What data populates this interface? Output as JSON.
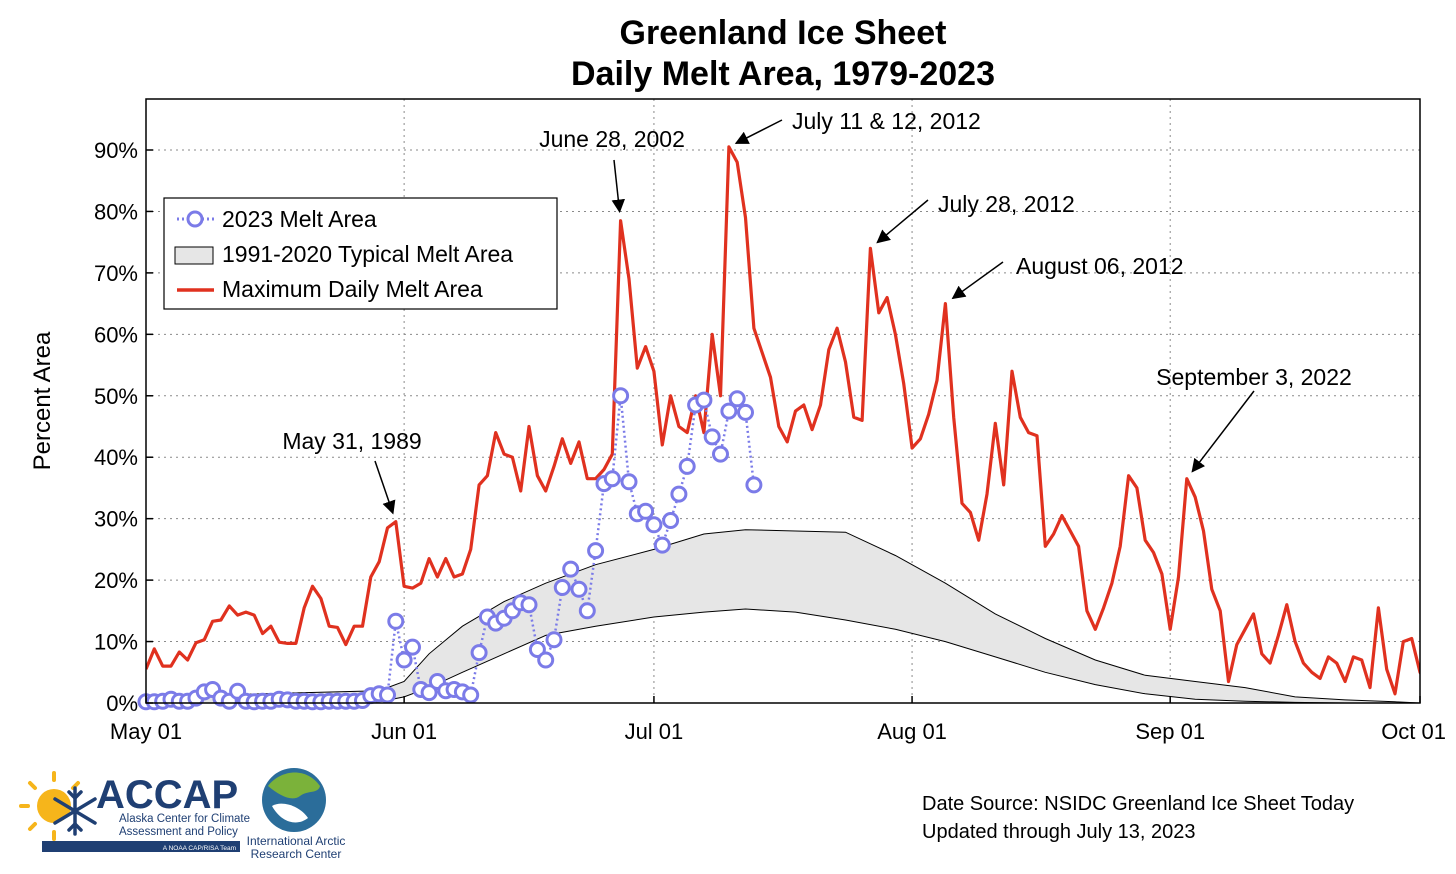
{
  "chart_data": {
    "type": "line",
    "title": "Greenland Ice Sheet",
    "subtitle": "Daily Melt Area, 1979-2023",
    "ylabel": "Percent Area",
    "xlabel": "",
    "ylim": [
      0,
      98.3
    ],
    "xlim": [
      0,
      153
    ],
    "yticks": [
      0,
      10,
      20,
      30,
      40,
      50,
      60,
      70,
      80,
      90
    ],
    "ytick_labels": [
      "0%",
      "10%",
      "20%",
      "30%",
      "40%",
      "50%",
      "60%",
      "70%",
      "80%",
      "90%"
    ],
    "xticks": [
      0,
      31,
      61,
      92,
      123,
      153
    ],
    "xtick_labels": [
      "May 01",
      "Jun 01",
      "Jul 01",
      "Aug 01",
      "Sep 01",
      "Oct 01"
    ],
    "grid": true,
    "legend_position": "upper-left",
    "legend": [
      {
        "label": "2023 Melt Area",
        "style": "dotted-circles",
        "color": "#7b7be8"
      },
      {
        "label": "1991-2020 Typical Melt Area",
        "style": "band",
        "color": "#e6e6e6"
      },
      {
        "label": "Maximum Daily Melt Area",
        "style": "line",
        "color": "#e0311f"
      }
    ],
    "series": [
      {
        "name": "Maximum Daily Melt Area",
        "color": "#e0311f",
        "values": [
          5.5,
          8.8,
          6.0,
          6.0,
          8.3,
          7.0,
          9.8,
          10.3,
          13.3,
          13.5,
          15.8,
          14.3,
          14.8,
          14.3,
          11.3,
          12.5,
          9.9,
          9.7,
          9.7,
          15.5,
          19.0,
          17.0,
          12.5,
          12.3,
          9.5,
          12.5,
          12.5,
          20.5,
          23.0,
          28.5,
          29.5,
          19.0,
          18.7,
          19.5,
          23.5,
          20.5,
          23.5,
          20.5,
          21.0,
          25.0,
          35.5,
          37.0,
          44.0,
          40.5,
          40.0,
          34.5,
          45.0,
          37.0,
          34.5,
          38.5,
          43.0,
          39.0,
          42.5,
          36.5,
          36.5,
          38.0,
          40.5,
          78.5,
          69.0,
          54.5,
          58.0,
          54.0,
          42.0,
          50.0,
          45.0,
          44.0,
          50.0,
          44.0,
          60.0,
          50.0,
          90.5,
          88.0,
          79.0,
          61.0,
          57.0,
          53.0,
          45.0,
          42.5,
          47.5,
          48.5,
          44.5,
          48.5,
          57.5,
          61.0,
          55.5,
          46.5,
          46.0,
          74.0,
          63.5,
          66.0,
          60.0,
          52.0,
          41.5,
          43.0,
          47.0,
          52.5,
          65.0,
          46.5,
          32.5,
          31.0,
          26.5,
          34.0,
          45.5,
          35.5,
          54.0,
          46.5,
          44.0,
          43.5,
          25.5,
          27.5,
          30.5,
          28.0,
          25.5,
          15.0,
          12.0,
          15.5,
          19.5,
          25.5,
          37.0,
          35.0,
          26.5,
          24.5,
          21.0,
          12.0,
          20.5,
          36.5,
          33.5,
          28.0,
          18.5,
          15.0,
          3.5,
          9.5,
          12.0,
          14.5,
          8.0,
          6.5,
          11.0,
          16.0,
          10.0,
          6.5,
          5.0,
          4.0,
          7.5,
          6.5,
          3.5,
          7.5,
          7.0,
          2.5,
          15.5,
          5.5,
          1.5,
          10.0,
          10.5,
          5.0,
          3.0
        ]
      },
      {
        "name": "2023 Melt Area",
        "color": "#7b7be8",
        "values": [
          0.2,
          0.2,
          0.3,
          0.6,
          0.3,
          0.3,
          0.8,
          1.8,
          2.2,
          0.8,
          0.3,
          1.9,
          0.3,
          0.2,
          0.3,
          0.3,
          0.6,
          0.5,
          0.3,
          0.3,
          0.2,
          0.2,
          0.3,
          0.3,
          0.3,
          0.3,
          0.4,
          1.2,
          1.5,
          1.3,
          13.3,
          7.0,
          9.1,
          2.2,
          1.7,
          3.5,
          2.0,
          2.2,
          1.8,
          1.3,
          8.2,
          14.0,
          13.0,
          13.8,
          15.0,
          16.3,
          16.0,
          8.7,
          7.0,
          10.3,
          18.8,
          21.8,
          18.5,
          15.0,
          24.8,
          35.7,
          36.5,
          50.0,
          36.0,
          30.8,
          31.2,
          29.0,
          25.7,
          29.7,
          34.0,
          38.5,
          48.5,
          49.3,
          43.3,
          40.5,
          47.5,
          49.5,
          47.3,
          35.5
        ]
      }
    ],
    "band": {
      "name": "1991-2020 Typical Melt Area",
      "x": [
        0,
        14,
        28,
        31,
        34,
        38,
        43,
        48,
        54,
        61,
        67,
        72,
        78,
        84,
        90,
        96,
        102,
        108,
        114,
        120,
        126,
        132,
        138,
        144,
        150,
        153
      ],
      "upper": [
        1.0,
        1.5,
        2.0,
        3.5,
        8.0,
        12.5,
        16.5,
        19.5,
        22.5,
        25.0,
        27.5,
        28.2,
        28.0,
        27.8,
        24.0,
        19.5,
        14.5,
        10.5,
        7.0,
        4.5,
        3.5,
        2.5,
        1.0,
        0.5,
        0.2,
        0.0
      ],
      "lower": [
        0.0,
        0.0,
        0.2,
        1.0,
        2.5,
        5.0,
        8.0,
        11.0,
        12.5,
        14.0,
        14.8,
        15.3,
        14.8,
        13.5,
        12.0,
        10.0,
        7.5,
        5.0,
        3.0,
        1.5,
        0.6,
        0.3,
        0.1,
        0.0,
        0.0,
        0.0
      ]
    },
    "annotations": [
      {
        "text": "May 31, 1989",
        "x": 30,
        "y": 29.5
      },
      {
        "text": "June 28, 2002",
        "x": 57,
        "y": 78.5
      },
      {
        "text": "July 11 & 12, 2012",
        "x": 70,
        "y": 90.5
      },
      {
        "text": "July 28, 2012",
        "x": 87,
        "y": 74.0
      },
      {
        "text": "August 06, 2012",
        "x": 96,
        "y": 65.0
      },
      {
        "text": "September 3, 2022",
        "x": 125,
        "y": 36.5
      }
    ]
  },
  "logos": {
    "accap_name": "ACCAP",
    "accap_line1": "Alaska Center for Climate",
    "accap_line2": "Assessment and Policy",
    "accap_line3": "A NOAA CAP/RISA Team",
    "iarc_line1": "International Arctic",
    "iarc_line2": "Research Center"
  },
  "footer": {
    "source": "Date Source: NSIDC Greenland Ice Sheet Today",
    "updated": "Updated through July 13, 2023"
  }
}
